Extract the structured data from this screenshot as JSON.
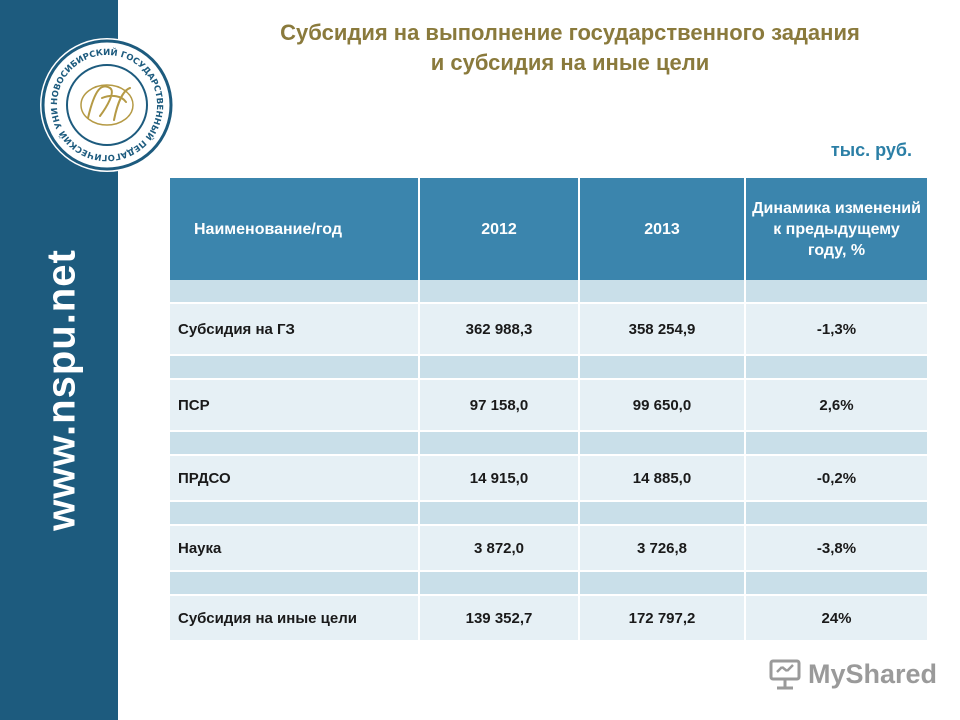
{
  "sidebar": {
    "url": "www.nspu.net",
    "logo": {
      "icon": "university-seal-icon",
      "ring_text": "НОВОСИБИРСКИЙ ГОСУДАРСТВЕННЫЙ ПЕДАГОГИЧЕСКИЙ УНИВЕРСИТЕТ"
    }
  },
  "title": {
    "line1": "Субсидия на выполнение государственного задания",
    "line2": "и субсидия на иные цели"
  },
  "units": "тыс. руб.",
  "table": {
    "headers": [
      "Наименование/год",
      "2012",
      "2013",
      "Динамика изменений к предыдущему году, %"
    ],
    "rows": [
      {
        "name": "Субсидия на ГЗ",
        "y2012": "362 988,3",
        "y2013": "358 254,9",
        "change": "-1,3%"
      },
      {
        "name": "ПСР",
        "y2012": "97 158,0",
        "y2013": "99 650,0",
        "change": "2,6%"
      },
      {
        "name": "ПРДСО",
        "y2012": "14 915,0",
        "y2013": "14 885,0",
        "change": "-0,2%"
      },
      {
        "name": "Наука",
        "y2012": "3 872,0",
        "y2013": "3 726,8",
        "change": "-3,8%"
      },
      {
        "name": "Субсидия на иные цели",
        "y2012": "139 352,7",
        "y2013": "172 797,2",
        "change": "24%"
      }
    ]
  },
  "watermark": {
    "icon": "presentation-board-icon",
    "text": "MyShared"
  },
  "colors": {
    "sidebar": "#1d5b7e",
    "title": "#8a7a3c",
    "units": "#2b7fa6",
    "header_bg": "#3b85ad",
    "row_bg": "#e6f0f5",
    "spacer_bg": "#c9dfe9"
  }
}
